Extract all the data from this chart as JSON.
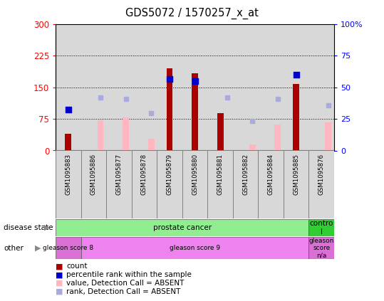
{
  "title": "GDS5072 / 1570257_x_at",
  "samples": [
    "GSM1095883",
    "GSM1095886",
    "GSM1095877",
    "GSM1095878",
    "GSM1095879",
    "GSM1095880",
    "GSM1095881",
    "GSM1095882",
    "GSM1095884",
    "GSM1095885",
    "GSM1095876"
  ],
  "count_values": [
    40,
    0,
    0,
    0,
    195,
    183,
    88,
    0,
    0,
    158,
    0
  ],
  "percentile_values": [
    97,
    0,
    0,
    0,
    170,
    165,
    0,
    0,
    0,
    180,
    0
  ],
  "value_absent": [
    0,
    72,
    78,
    28,
    0,
    0,
    0,
    14,
    62,
    0,
    66
  ],
  "rank_absent": [
    0,
    125,
    122,
    88,
    0,
    0,
    125,
    70,
    122,
    0,
    108
  ],
  "disease_state_groups": [
    {
      "label": "prostate cancer",
      "start": 0,
      "end": 10,
      "color": "#90ee90"
    },
    {
      "label": "contro\nl",
      "start": 10,
      "end": 11,
      "color": "#32cd32"
    }
  ],
  "other_groups": [
    {
      "label": "gleason score 8",
      "start": 0,
      "end": 1,
      "color": "#da70d6"
    },
    {
      "label": "gleason score 9",
      "start": 1,
      "end": 10,
      "color": "#ee82ee"
    },
    {
      "label": "gleason\nscore\nn/a",
      "start": 10,
      "end": 11,
      "color": "#da70d6"
    }
  ],
  "ylim_left": [
    0,
    300
  ],
  "ylim_right": [
    0,
    100
  ],
  "yticks_left": [
    0,
    75,
    150,
    225,
    300
  ],
  "yticks_right": [
    0,
    25,
    50,
    75,
    100
  ],
  "ytick_labels_right": [
    "0",
    "25",
    "50",
    "75",
    "100%"
  ],
  "gridlines": [
    75,
    150,
    225
  ],
  "bar_color_count": "#aa0000",
  "bar_color_value_absent": "#ffb6c1",
  "dot_color_percentile": "#0000cc",
  "dot_color_rank_absent": "#aaaadd",
  "bg_color": "#d8d8d8",
  "plot_bg": "#ffffff",
  "legend_items": [
    {
      "color": "#aa0000",
      "label": "count"
    },
    {
      "color": "#0000cc",
      "label": "percentile rank within the sample"
    },
    {
      "color": "#ffb6c1",
      "label": "value, Detection Call = ABSENT"
    },
    {
      "color": "#aaaadd",
      "label": "rank, Detection Call = ABSENT"
    }
  ]
}
